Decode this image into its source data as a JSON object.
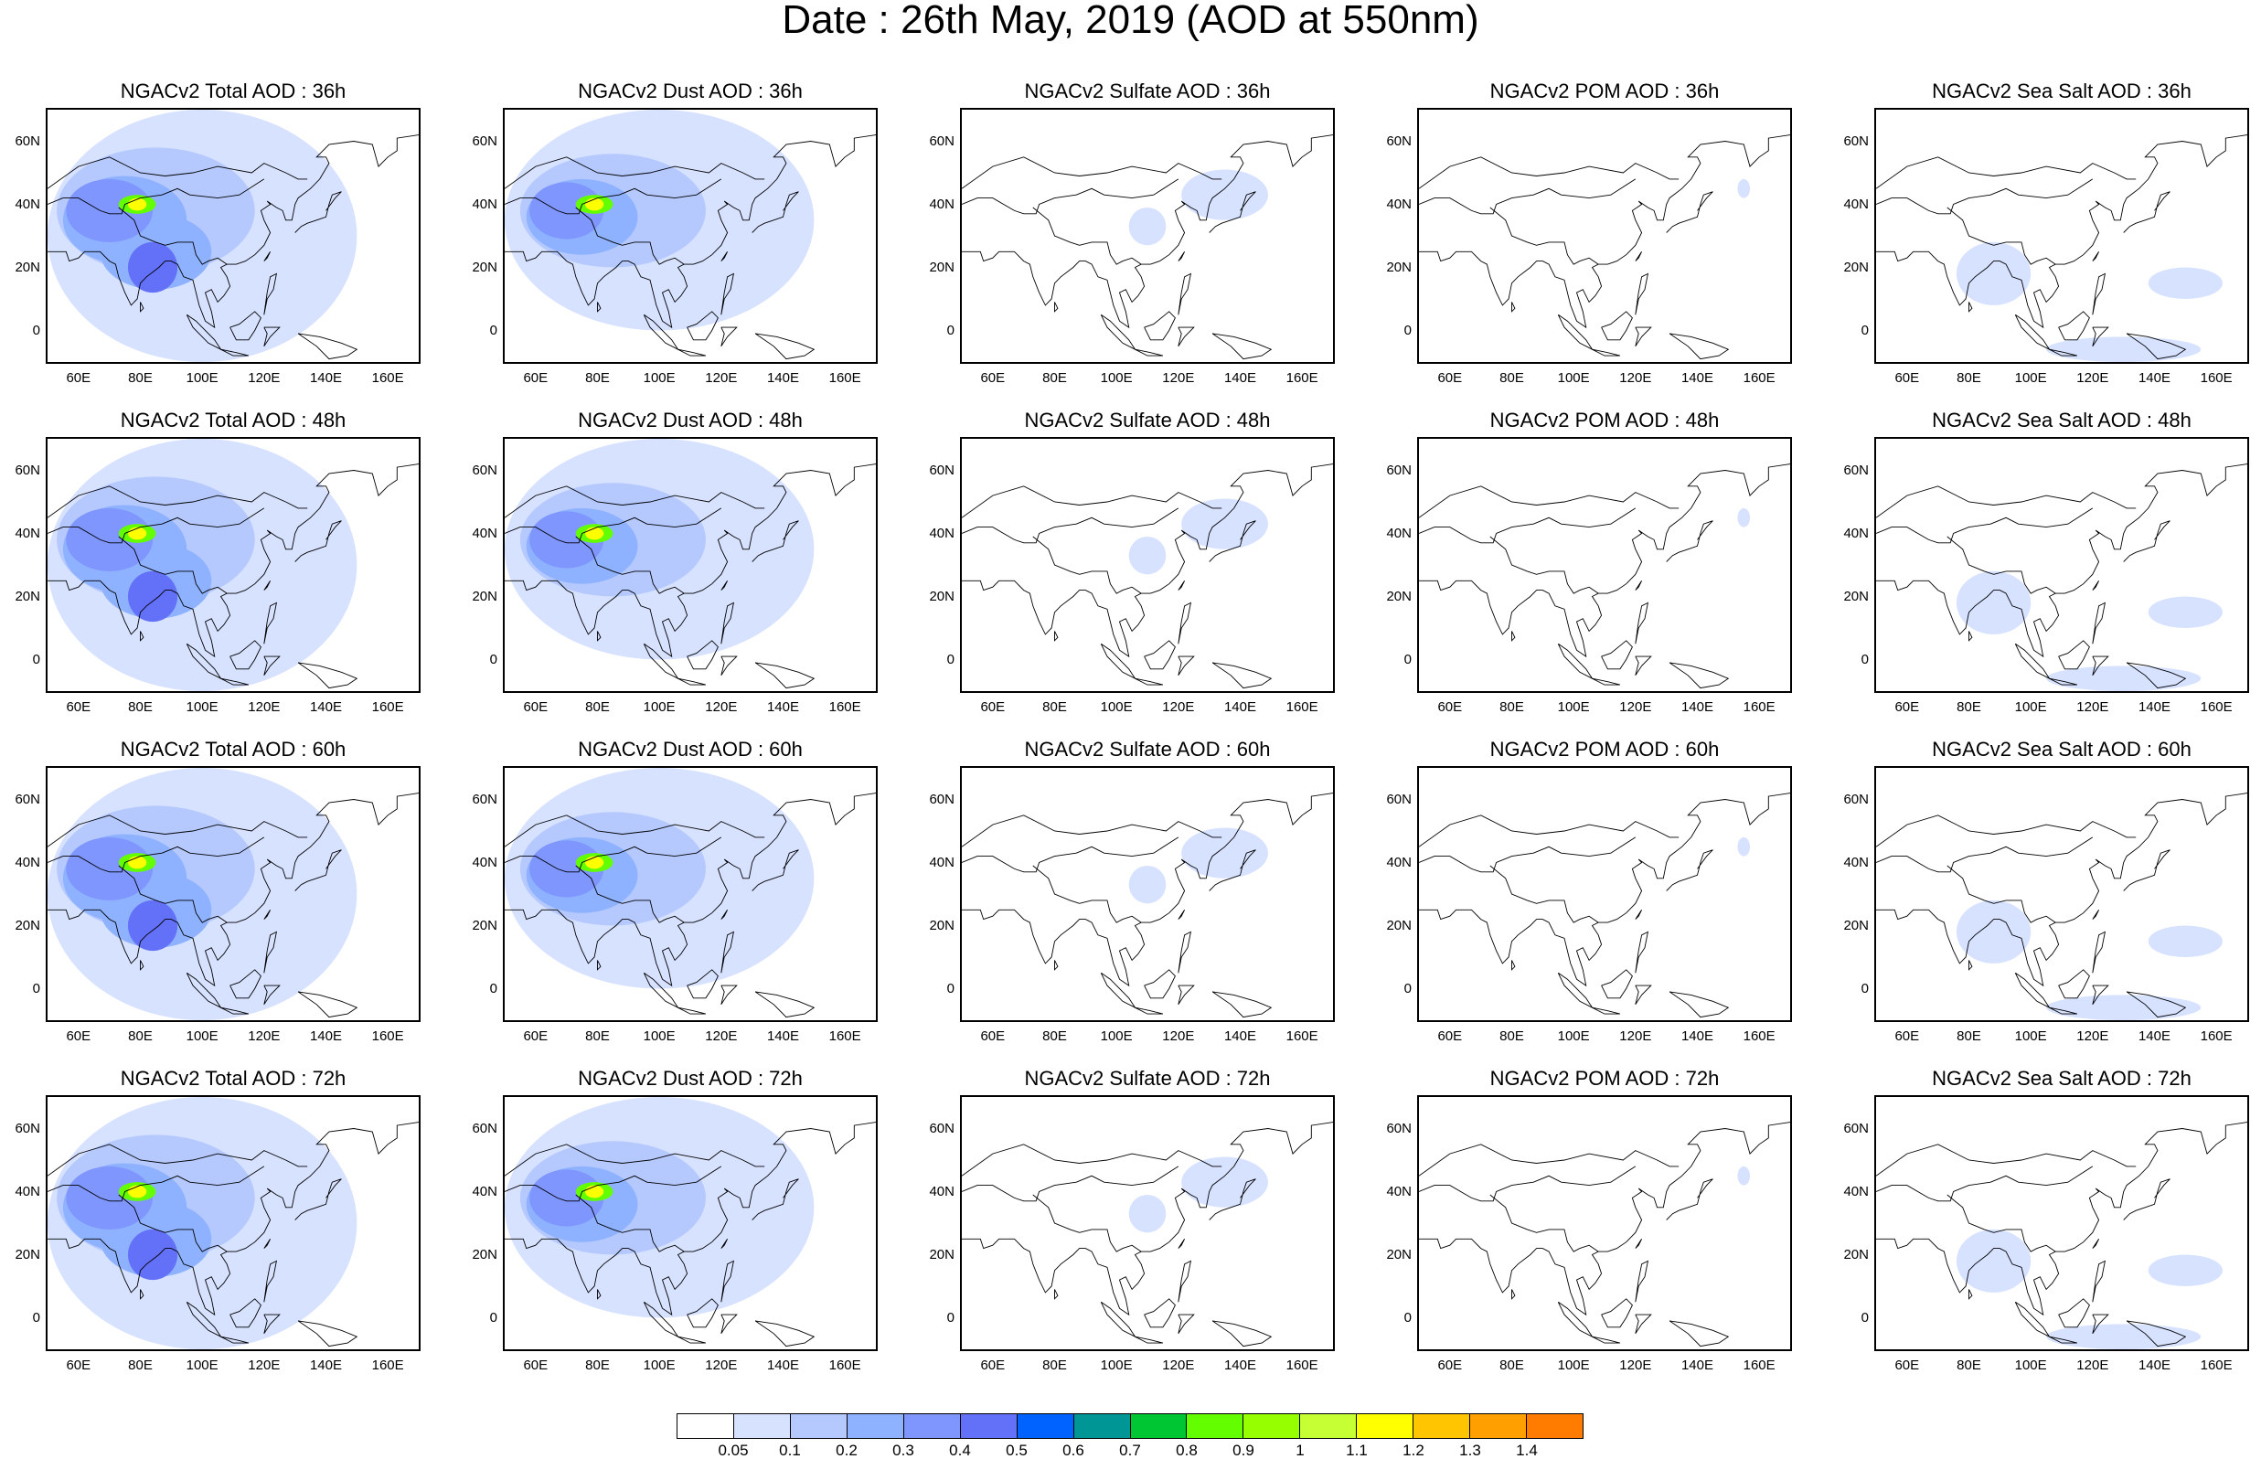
{
  "title": "Date : 26th May, 2019 (AOD at 550nm)",
  "map_data": {
    "type": "aod-panel-grid",
    "lat_ticks": [
      "60N",
      "40N",
      "20N",
      "0"
    ],
    "lon_ticks": [
      "60E",
      "80E",
      "100E",
      "120E",
      "140E",
      "160E"
    ],
    "columns": [
      "Total",
      "Dust",
      "Sulfate",
      "POM",
      "Sea Salt"
    ],
    "rows": [
      "36h",
      "48h",
      "60h",
      "72h"
    ],
    "panel_titles": [
      [
        "NGACv2 Total AOD : 36h",
        "NGACv2 Dust AOD : 36h",
        "NGACv2 Sulfate AOD : 36h",
        "NGACv2 POM AOD : 36h",
        "NGACv2 Sea Salt AOD : 36h"
      ],
      [
        "NGACv2 Total AOD : 48h",
        "NGACv2 Dust AOD : 48h",
        "NGACv2 Sulfate AOD : 48h",
        "NGACv2 POM AOD : 48h",
        "NGACv2 Sea Salt AOD : 48h"
      ],
      [
        "NGACv2 Total AOD : 60h",
        "NGACv2 Dust AOD : 60h",
        "NGACv2 Sulfate AOD : 60h",
        "NGACv2 POM AOD : 60h",
        "NGACv2 Sea Salt AOD : 60h"
      ],
      [
        "NGACv2 Total AOD : 72h",
        "NGACv2 Dust AOD : 72h",
        "NGACv2 Sulfate AOD : 72h",
        "NGACv2 POM AOD : 72h",
        "NGACv2 Sea Salt  AOD : 72h"
      ]
    ]
  },
  "colorbar": {
    "labels": [
      "0.05",
      "0.1",
      "0.2",
      "0.3",
      "0.4",
      "0.5",
      "0.6",
      "0.7",
      "0.8",
      "0.9",
      "1",
      "1.1",
      "1.2",
      "1.3",
      "1.4"
    ],
    "colors": [
      "#ffffff",
      "#d6e2ff",
      "#b5c9ff",
      "#8eb2ff",
      "#7f96ff",
      "#6370f8",
      "#0063ff",
      "#009696",
      "#00c633",
      "#63ff00",
      "#96ff00",
      "#c6ff33",
      "#ffff00",
      "#ffc600",
      "#ffa000",
      "#ff7c00",
      "#ff1900"
    ]
  }
}
